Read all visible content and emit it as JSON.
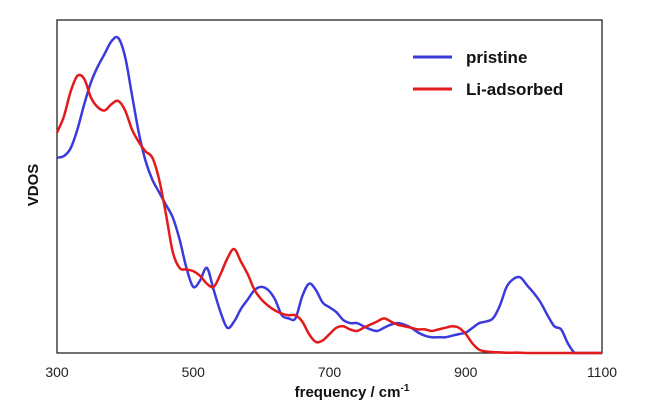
{
  "chart_data": {
    "type": "line",
    "title": "",
    "xlabel": "frequency / cm",
    "xlabel_superscript": "-1",
    "ylabel": "VDOS",
    "xlim": [
      300,
      1100
    ],
    "ylim": [
      0,
      1
    ],
    "xticks": [
      300,
      500,
      700,
      900,
      1100
    ],
    "yticks": [],
    "grid": false,
    "legend_position": "top-right",
    "series": [
      {
        "name": "pristine",
        "color": "#3b3bdc",
        "x": [
          300,
          310,
          320,
          330,
          340,
          350,
          360,
          370,
          380,
          390,
          400,
          410,
          420,
          430,
          440,
          450,
          460,
          470,
          480,
          490,
          500,
          510,
          520,
          530,
          540,
          550,
          560,
          570,
          580,
          590,
          600,
          610,
          620,
          630,
          640,
          650,
          660,
          670,
          680,
          690,
          700,
          710,
          720,
          730,
          740,
          750,
          760,
          770,
          780,
          790,
          800,
          810,
          820,
          830,
          840,
          850,
          860,
          870,
          880,
          890,
          900,
          910,
          920,
          930,
          940,
          950,
          960,
          970,
          980,
          990,
          1000,
          1010,
          1020,
          1030,
          1040,
          1050,
          1060,
          1070,
          1080,
          1090,
          1100
        ],
        "y": [
          0.62,
          0.625,
          0.65,
          0.71,
          0.79,
          0.86,
          0.91,
          0.95,
          0.99,
          1.0,
          0.94,
          0.82,
          0.7,
          0.61,
          0.55,
          0.51,
          0.47,
          0.43,
          0.36,
          0.27,
          0.21,
          0.23,
          0.27,
          0.2,
          0.13,
          0.08,
          0.1,
          0.14,
          0.17,
          0.2,
          0.21,
          0.2,
          0.17,
          0.12,
          0.11,
          0.11,
          0.18,
          0.22,
          0.2,
          0.16,
          0.145,
          0.13,
          0.105,
          0.095,
          0.095,
          0.085,
          0.075,
          0.07,
          0.08,
          0.09,
          0.095,
          0.09,
          0.08,
          0.065,
          0.055,
          0.05,
          0.05,
          0.05,
          0.055,
          0.06,
          0.065,
          0.08,
          0.095,
          0.1,
          0.11,
          0.15,
          0.21,
          0.235,
          0.24,
          0.215,
          0.19,
          0.16,
          0.12,
          0.085,
          0.075,
          0.03,
          0.0,
          0.0,
          0.0,
          0.0,
          0.0
        ]
      },
      {
        "name": "Li-adsorbed",
        "color": "#e31a1c",
        "x": [
          300,
          310,
          320,
          330,
          340,
          350,
          360,
          370,
          380,
          390,
          400,
          410,
          420,
          430,
          440,
          450,
          460,
          470,
          480,
          490,
          500,
          510,
          520,
          530,
          540,
          550,
          560,
          570,
          580,
          590,
          600,
          610,
          620,
          630,
          640,
          650,
          660,
          670,
          680,
          690,
          700,
          710,
          720,
          730,
          740,
          750,
          760,
          770,
          780,
          790,
          800,
          810,
          820,
          830,
          840,
          850,
          860,
          870,
          880,
          890,
          900,
          910,
          920,
          930,
          940,
          950,
          960,
          970,
          980,
          990,
          1000,
          1010,
          1020,
          1030,
          1040,
          1050,
          1060,
          1070,
          1080,
          1090,
          1100
        ],
        "y": [
          0.7,
          0.75,
          0.83,
          0.88,
          0.87,
          0.81,
          0.78,
          0.77,
          0.79,
          0.8,
          0.77,
          0.71,
          0.67,
          0.64,
          0.62,
          0.55,
          0.44,
          0.32,
          0.27,
          0.265,
          0.26,
          0.245,
          0.22,
          0.21,
          0.25,
          0.3,
          0.33,
          0.29,
          0.25,
          0.2,
          0.17,
          0.15,
          0.135,
          0.125,
          0.12,
          0.12,
          0.1,
          0.06,
          0.035,
          0.04,
          0.06,
          0.08,
          0.085,
          0.075,
          0.07,
          0.08,
          0.09,
          0.1,
          0.11,
          0.1,
          0.09,
          0.085,
          0.08,
          0.075,
          0.075,
          0.07,
          0.075,
          0.08,
          0.085,
          0.08,
          0.06,
          0.03,
          0.01,
          0.005,
          0.003,
          0.002,
          0.001,
          0.001,
          0.001,
          0.0,
          0.0,
          0.0,
          0.0,
          0.0,
          0.0,
          0.0,
          0.0,
          0.0,
          0.0,
          0.0,
          0.0
        ]
      }
    ]
  }
}
